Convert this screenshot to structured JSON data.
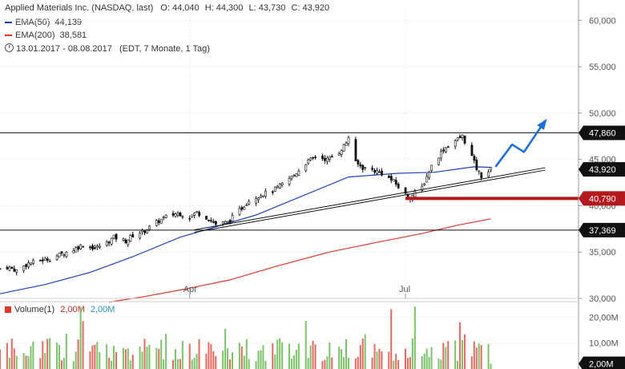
{
  "header": {
    "title": "Applied Materials Inc. (NASDAQ, last)",
    "ohlc": [
      {
        "label": "O:",
        "value": "44,040"
      },
      {
        "label": "H:",
        "value": "44,300"
      },
      {
        "label": "L:",
        "value": "43,730"
      },
      {
        "label": "C:",
        "value": "43,920"
      }
    ],
    "ema50": {
      "label": "EMA(50)",
      "value": "44,139",
      "color": "#1f3fbf"
    },
    "ema200": {
      "label": "EMA(200)",
      "value": "38,581",
      "color": "#e0362b"
    },
    "range": "13.01.2017 - 08.08.2017",
    "range_note": "(EDT, 7 Monate, 1 Tag)",
    "clock_icon": "clock-icon"
  },
  "volume_legend": {
    "label": "Volume(1)",
    "value_red": "2,00M",
    "value_blue": "2,00M"
  },
  "chart_data": {
    "type": "candlestick",
    "date_range": [
      "2017-01-13",
      "2017-08-08"
    ],
    "x_tick_labels": [
      {
        "label": "Apr",
        "date": "2017-04-03"
      },
      {
        "label": "Jul",
        "date": "2017-07-03"
      }
    ],
    "y_ticks": [
      {
        "value": 30000,
        "label": "30,000"
      },
      {
        "value": 35000,
        "label": "35,000"
      },
      {
        "value": 40000,
        "label": "40,000"
      },
      {
        "value": 45000,
        "label": "45,000"
      },
      {
        "value": 50000,
        "label": "50,000"
      },
      {
        "value": 55000,
        "label": "55,000"
      },
      {
        "value": 60000,
        "label": "60,000"
      }
    ],
    "ylim": [
      30000,
      61500
    ],
    "close_series": [
      [
        "2017-01-13",
        33.2
      ],
      [
        "2017-01-16",
        33.4
      ],
      [
        "2017-01-20",
        33.0
      ],
      [
        "2017-01-25",
        33.8
      ],
      [
        "2017-01-30",
        34.1
      ],
      [
        "2017-02-03",
        34.3
      ],
      [
        "2017-02-08",
        34.8
      ],
      [
        "2017-02-13",
        35.3
      ],
      [
        "2017-02-17",
        35.8
      ],
      [
        "2017-02-22",
        35.4
      ],
      [
        "2017-02-27",
        36.0
      ],
      [
        "2017-03-02",
        36.6
      ],
      [
        "2017-03-07",
        36.2
      ],
      [
        "2017-03-10",
        36.8
      ],
      [
        "2017-03-15",
        37.3
      ],
      [
        "2017-03-20",
        38.2
      ],
      [
        "2017-03-24",
        38.8
      ],
      [
        "2017-03-29",
        39.2
      ],
      [
        "2017-04-03",
        38.8
      ],
      [
        "2017-04-06",
        39.3
      ],
      [
        "2017-04-11",
        38.6
      ],
      [
        "2017-04-14",
        38.0
      ],
      [
        "2017-04-19",
        38.2
      ],
      [
        "2017-04-24",
        39.5
      ],
      [
        "2017-04-28",
        40.6
      ],
      [
        "2017-05-03",
        41.2
      ],
      [
        "2017-05-08",
        41.6
      ],
      [
        "2017-05-12",
        42.3
      ],
      [
        "2017-05-17",
        43.3
      ],
      [
        "2017-05-22",
        44.6
      ],
      [
        "2017-05-26",
        45.3
      ],
      [
        "2017-05-31",
        45.0
      ],
      [
        "2017-06-05",
        45.8
      ],
      [
        "2017-06-08",
        46.8
      ],
      [
        "2017-06-09",
        47.4
      ],
      [
        "2017-06-12",
        44.6
      ],
      [
        "2017-06-15",
        44.1
      ],
      [
        "2017-06-20",
        43.8
      ],
      [
        "2017-06-23",
        43.5
      ],
      [
        "2017-06-28",
        42.6
      ],
      [
        "2017-07-03",
        41.2
      ],
      [
        "2017-07-05",
        40.9
      ],
      [
        "2017-07-10",
        42.0
      ],
      [
        "2017-07-14",
        44.3
      ],
      [
        "2017-07-19",
        46.1
      ],
      [
        "2017-07-24",
        47.0
      ],
      [
        "2017-07-27",
        47.5
      ],
      [
        "2017-07-31",
        45.3
      ],
      [
        "2017-08-02",
        44.0
      ],
      [
        "2017-08-04",
        43.2
      ],
      [
        "2017-08-08",
        43.92
      ]
    ],
    "ema50_series": [
      [
        "2017-01-13",
        30.5
      ],
      [
        "2017-02-01",
        31.5
      ],
      [
        "2017-02-20",
        32.8
      ],
      [
        "2017-03-10",
        34.5
      ],
      [
        "2017-03-30",
        36.6
      ],
      [
        "2017-04-15",
        37.8
      ],
      [
        "2017-05-01",
        39.0
      ],
      [
        "2017-05-20",
        41.0
      ],
      [
        "2017-06-09",
        43.1
      ],
      [
        "2017-06-30",
        43.5
      ],
      [
        "2017-07-15",
        43.6
      ],
      [
        "2017-08-01",
        44.2
      ],
      [
        "2017-08-08",
        44.139
      ]
    ],
    "ema200_series": [
      [
        "2017-02-28",
        29.6
      ],
      [
        "2017-03-15",
        30.2
      ],
      [
        "2017-04-01",
        31.0
      ],
      [
        "2017-04-20",
        32.0
      ],
      [
        "2017-05-10",
        33.5
      ],
      [
        "2017-06-01",
        35.0
      ],
      [
        "2017-06-20",
        36.0
      ],
      [
        "2017-07-10",
        37.0
      ],
      [
        "2017-07-25",
        37.9
      ],
      [
        "2017-08-08",
        38.581
      ]
    ],
    "hlines": [
      {
        "value": 47860,
        "label": "47,860",
        "color": "#111111"
      },
      {
        "value": 37369,
        "label": "37,369",
        "color": "#111111"
      }
    ],
    "support_line": {
      "value": 40790,
      "label": "40,790",
      "color": "#b3191d",
      "start": "2017-07-03"
    },
    "last_price": {
      "value": 43920,
      "label": "43,920"
    },
    "trend_channel": {
      "start": [
        "2017-04-05",
        37.4
      ],
      "end": [
        "2017-08-31",
        44.1
      ]
    },
    "forecast_arrow": [
      [
        "2017-08-10",
        44.2
      ],
      [
        "2017-08-17",
        46.6
      ],
      [
        "2017-08-22",
        45.8
      ],
      [
        "2017-08-31",
        49.2
      ]
    ],
    "volume": {
      "y_ticks": [
        {
          "value": 10,
          "label": "10,00M"
        },
        {
          "value": 20,
          "label": "20,00M"
        }
      ],
      "last_label": "2,00M",
      "ylim": [
        0,
        26
      ]
    }
  }
}
